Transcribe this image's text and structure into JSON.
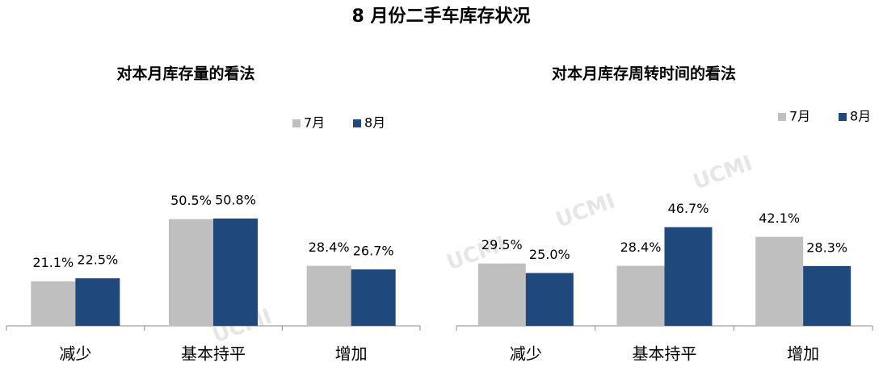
{
  "title": "8 月份二手车库存状况",
  "watermark": "UCMI",
  "chart_data": [
    {
      "type": "bar",
      "title": "对本月库存量的看法",
      "categories": [
        "减少",
        "基本持平",
        "增加"
      ],
      "series": [
        {
          "name": "7月",
          "color": "#bfbfbf",
          "values": [
            21.1,
            50.5,
            28.4
          ],
          "value_labels": [
            "21.1%",
            "50.5%",
            "28.4%"
          ]
        },
        {
          "name": "8月",
          "color": "#1f497d",
          "values": [
            22.5,
            50.8,
            26.7
          ],
          "value_labels": [
            "22.5%",
            "50.8%",
            "26.7%"
          ]
        }
      ]
    },
    {
      "type": "bar",
      "title": "对本月库存周转时间的看法",
      "categories": [
        "减少",
        "基本持平",
        "增加"
      ],
      "series": [
        {
          "name": "7月",
          "color": "#bfbfbf",
          "values": [
            29.5,
            28.4,
            42.1
          ],
          "value_labels": [
            "29.5%",
            "28.4%",
            "42.1%"
          ]
        },
        {
          "name": "8月",
          "color": "#1f497d",
          "values": [
            25.0,
            46.7,
            28.3
          ],
          "value_labels": [
            "25.0%",
            "46.7%",
            "28.3%"
          ]
        }
      ]
    }
  ]
}
